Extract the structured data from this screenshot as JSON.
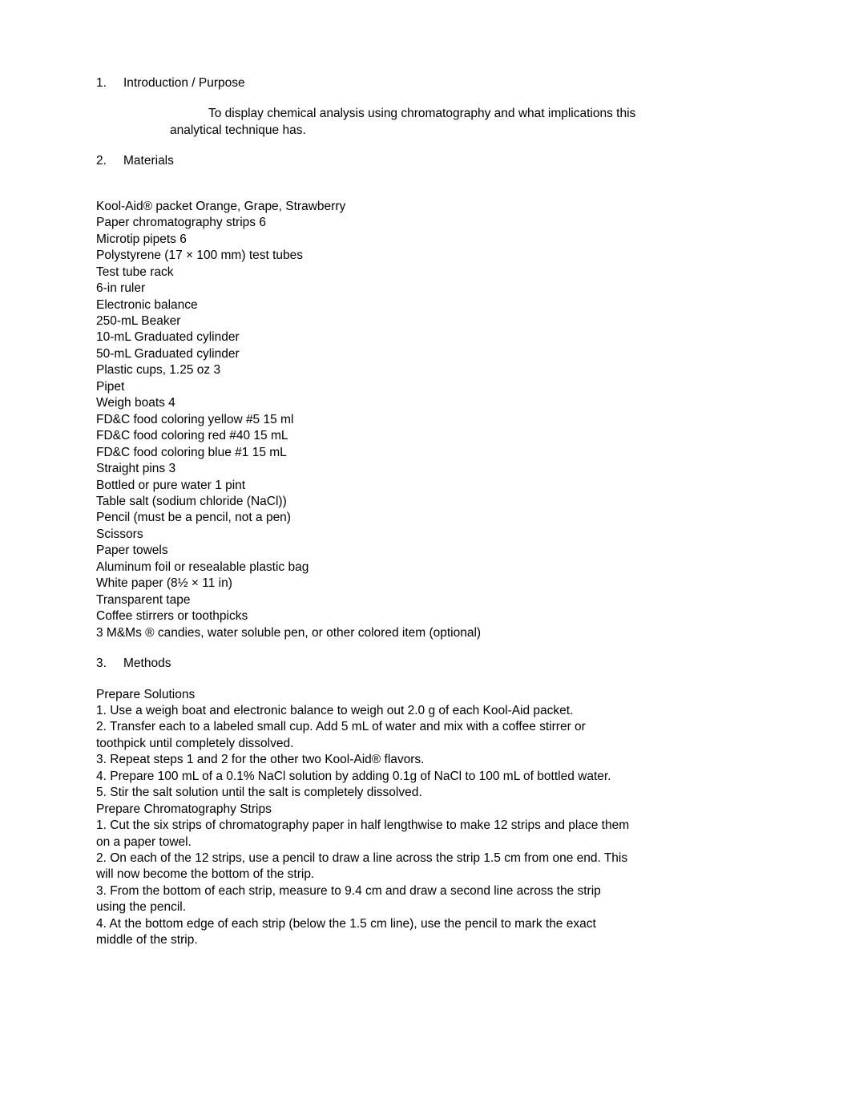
{
  "sections": {
    "intro": {
      "num": "1.",
      "title": "Introduction / Purpose"
    },
    "materials": {
      "num": "2.",
      "title": "Materials"
    },
    "methods": {
      "num": "3.",
      "title": "Methods"
    }
  },
  "intro_text_l1": "To display chemical analysis using chromatography and what implications this",
  "intro_text_l2": "analytical technique has.",
  "materials_list": [
    "Kool-Aid® packet Orange, Grape, Strawberry",
    "Paper chromatography strips 6",
    "Microtip pipets 6",
    "Polystyrene (17 × 100 mm) test tubes",
    "Test tube rack",
    "6-in ruler",
    "Electronic balance",
    "250-mL Beaker",
    "10-mL Graduated cylinder",
    "50-mL Graduated cylinder",
    "Plastic cups, 1.25 oz 3",
    "Pipet",
    "Weigh boats 4",
    "FD&C food coloring yellow #5 15 ml",
    "FD&C food coloring red #40 15 mL",
    "FD&C food coloring blue #1 15 mL",
    "Straight pins 3",
    "Bottled or pure water 1 pint",
    "Table salt (sodium chloride (NaCl))",
    "Pencil (must be a pencil, not a pen)",
    "Scissors",
    "Paper towels",
    "Aluminum foil or resealable plastic bag",
    "White paper (8½ × 11 in)",
    "Transparent tape",
    "Coffee stirrers or toothpicks",
    "3 M&Ms ® candies, water soluble pen, or other colored item (optional)"
  ],
  "methods_lines": [
    "Prepare Solutions",
    "1. Use a weigh boat and electronic balance to weigh out 2.0 g of each Kool-Aid packet.",
    "2. Transfer each to a labeled small cup. Add 5 mL of water and mix with a coffee stirrer or",
    "toothpick until completely dissolved.",
    "3. Repeat steps 1 and 2 for the other two Kool-Aid® flavors.",
    "4. Prepare 100 mL of a 0.1% NaCl solution by adding 0.1g of NaCl to 100 mL of bottled water.",
    "5. Stir the salt solution until the salt is completely dissolved.",
    "Prepare Chromatography Strips",
    "1. Cut the six strips of chromatography paper in half lengthwise to make 12 strips and place them",
    "on a paper towel.",
    "2. On each of the 12 strips, use a pencil to draw a line across the strip 1.5 cm from one end. This",
    "will now become the bottom of the strip.",
    "3. From the bottom of each strip, measure to 9.4 cm and draw a second line across the strip",
    "using the pencil.",
    "4. At the bottom edge of each strip (below the 1.5 cm line), use the pencil to mark the exact",
    "middle of the strip."
  ]
}
